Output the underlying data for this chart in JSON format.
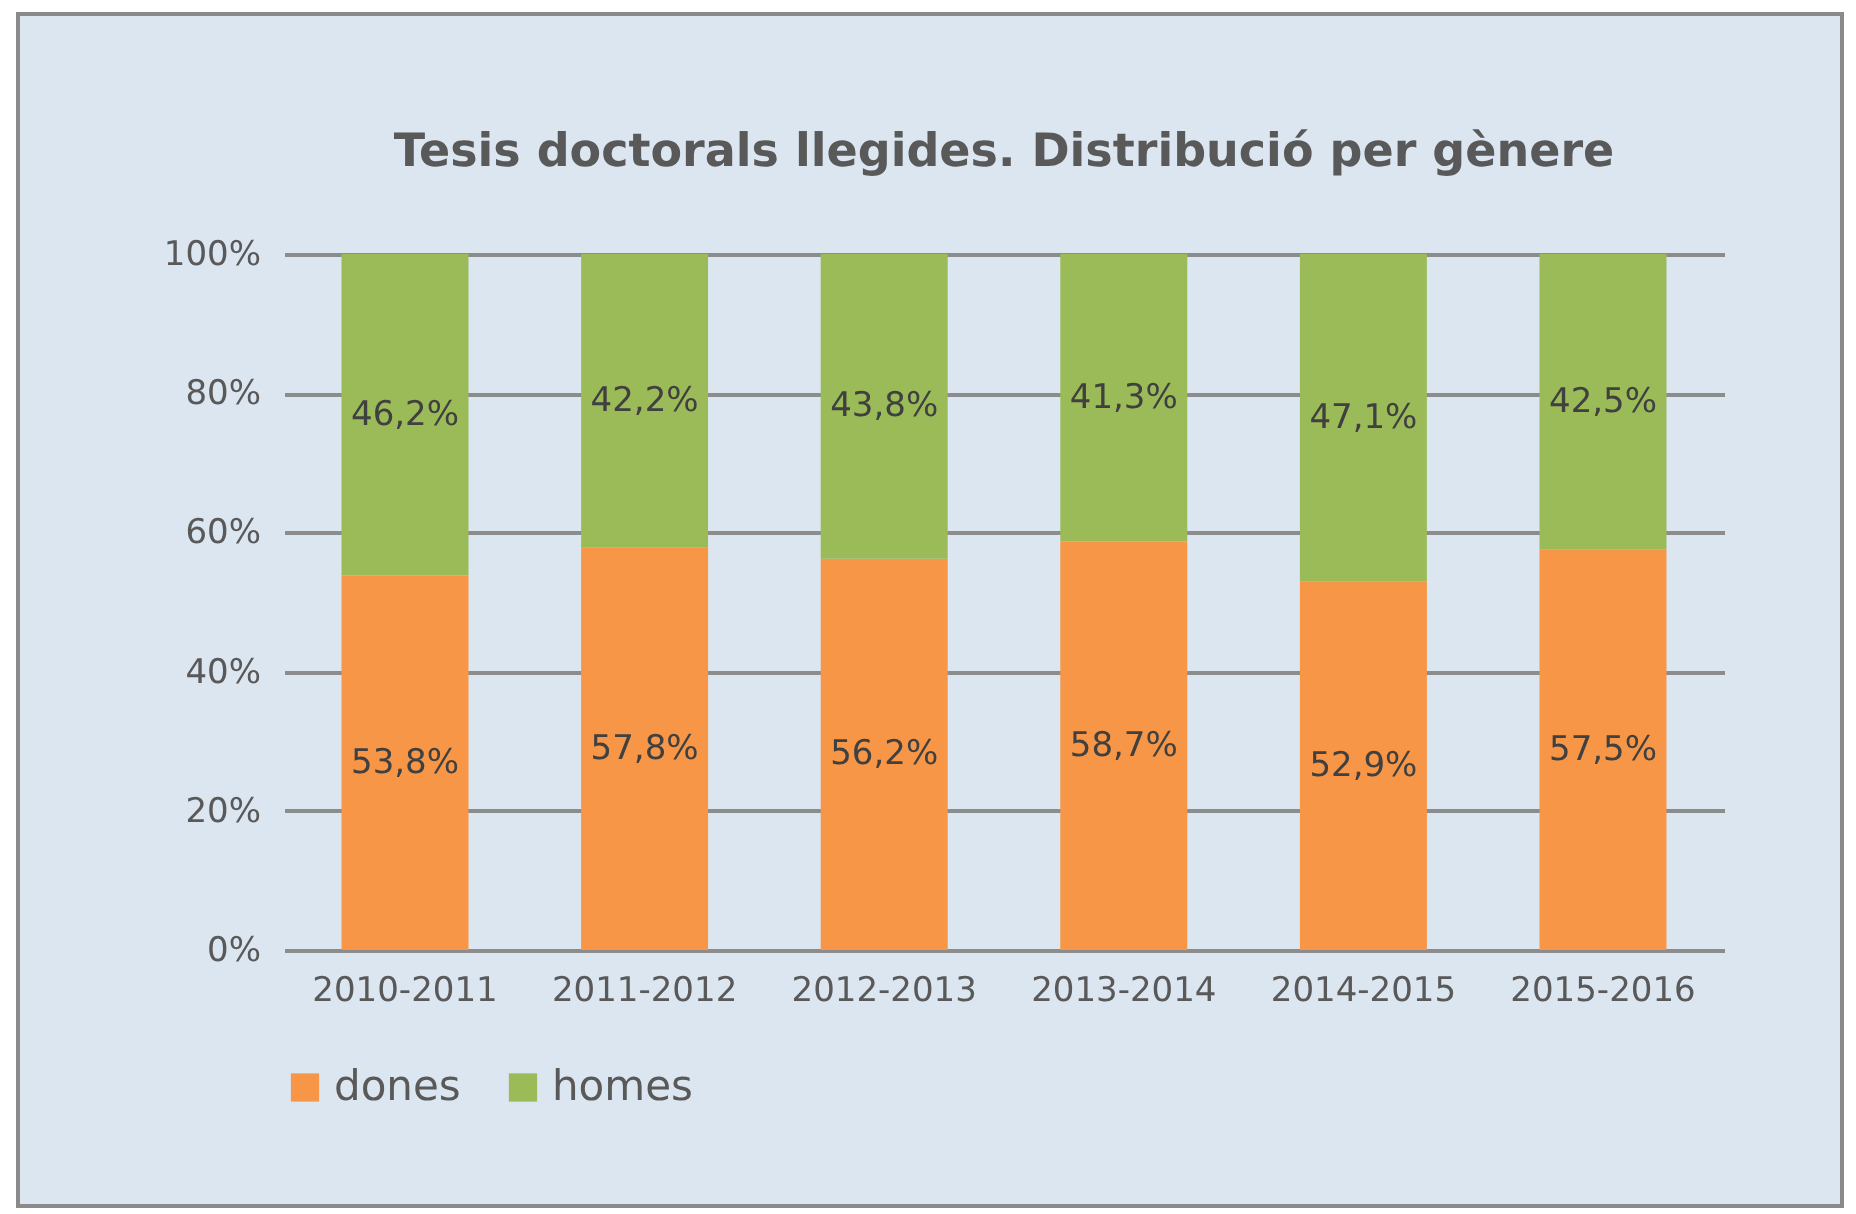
{
  "chart_data": {
    "type": "bar",
    "title": "Tesis doctorals llegides. Distribució per gènere",
    "categories": [
      "2010-2011",
      "2011-2012",
      "2012-2013",
      "2013-2014",
      "2014-2015",
      "2015-2016"
    ],
    "series": [
      {
        "name": "dones",
        "color": "#f79646",
        "values": [
          53.8,
          57.8,
          56.2,
          58.7,
          52.9,
          57.5
        ],
        "value_labels": [
          "53,8%",
          "57,8%",
          "56,2%",
          "58,7%",
          "52,9%",
          "57,5%"
        ]
      },
      {
        "name": "homes",
        "color": "#9bbb59",
        "values": [
          46.2,
          42.2,
          43.8,
          41.3,
          47.1,
          42.5
        ],
        "value_labels": [
          "46,2%",
          "42,2%",
          "43,8%",
          "41,3%",
          "47,1%",
          "42,5%"
        ]
      }
    ],
    "stacked": true,
    "ylim": [
      0,
      100
    ],
    "yticks": [
      {
        "value": 0,
        "label": "0%"
      },
      {
        "value": 20,
        "label": "20%"
      },
      {
        "value": 40,
        "label": "40%"
      },
      {
        "value": 60,
        "label": "60%"
      },
      {
        "value": 80,
        "label": "80%"
      },
      {
        "value": 100,
        "label": "100%"
      }
    ],
    "grid": "y",
    "legend": "bottom"
  }
}
